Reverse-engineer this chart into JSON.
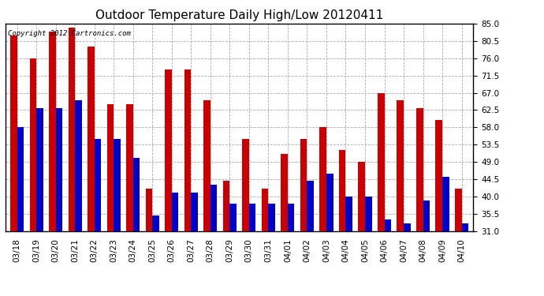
{
  "title": "Outdoor Temperature Daily High/Low 20120411",
  "copyright": "Copyright 2012 Cartronics.com",
  "dates": [
    "03/18",
    "03/19",
    "03/20",
    "03/21",
    "03/22",
    "03/23",
    "03/24",
    "03/25",
    "03/26",
    "03/27",
    "03/28",
    "03/29",
    "03/30",
    "03/31",
    "04/01",
    "04/02",
    "04/03",
    "04/04",
    "04/05",
    "04/06",
    "04/07",
    "04/08",
    "04/09",
    "04/10"
  ],
  "highs": [
    82,
    76,
    83,
    84,
    79,
    64,
    64,
    42,
    73,
    73,
    65,
    44,
    55,
    42,
    51,
    55,
    58,
    52,
    49,
    67,
    65,
    63,
    60,
    42
  ],
  "lows": [
    58,
    63,
    63,
    65,
    55,
    55,
    50,
    35,
    41,
    41,
    43,
    38,
    38,
    38,
    38,
    44,
    46,
    40,
    40,
    34,
    33,
    39,
    45,
    33
  ],
  "high_color": "#cc0000",
  "low_color": "#0000cc",
  "background_color": "#ffffff",
  "grid_color": "#aaaaaa",
  "ylim": [
    31.0,
    85.0
  ],
  "yticks": [
    31.0,
    35.5,
    40.0,
    44.5,
    49.0,
    53.5,
    58.0,
    62.5,
    67.0,
    71.5,
    76.0,
    80.5,
    85.0
  ],
  "bar_width": 0.35,
  "title_fontsize": 11,
  "tick_fontsize": 7.5,
  "copyright_fontsize": 6.5
}
